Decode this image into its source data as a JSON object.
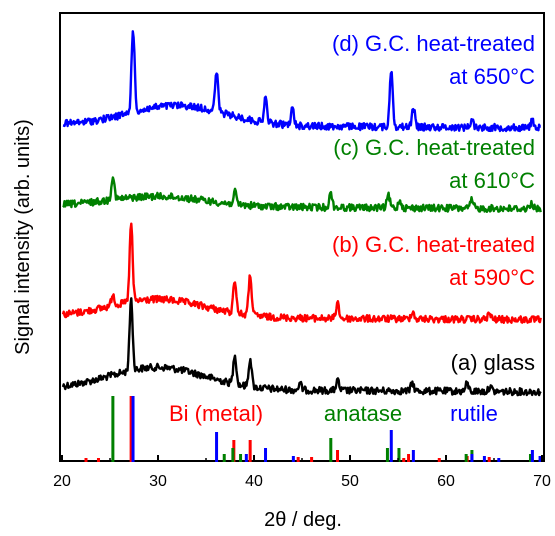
{
  "chart_data": {
    "type": "line",
    "xlabel": "2θ / deg.",
    "ylabel": "Signal intensity (arb. units)",
    "xlim": [
      20,
      70
    ],
    "xticks": [
      20,
      30,
      40,
      50,
      60,
      70
    ],
    "grid": false,
    "legend": "none",
    "series": [
      {
        "name": "(a) glass",
        "color": "#000000",
        "baseline": 390,
        "label_lines": [
          "(a) glass"
        ],
        "peaks": [
          [
            27.2,
            72
          ],
          [
            38.0,
            30
          ],
          [
            39.6,
            28
          ],
          [
            44.8,
            6
          ],
          [
            48.7,
            10
          ],
          [
            56.5,
            8
          ],
          [
            62.2,
            8
          ],
          [
            64.6,
            5
          ]
        ],
        "hump": [
          30,
          22
        ]
      },
      {
        "name": "(b) G.C. heat-treated at 590°C",
        "color": "#ff0000",
        "baseline": 318,
        "label_lines": [
          "(b) G.C. heat-treated",
          "at 590°C"
        ],
        "peaks": [
          [
            25.3,
            12
          ],
          [
            27.2,
            78
          ],
          [
            38.0,
            34
          ],
          [
            39.6,
            40
          ],
          [
            48.7,
            16
          ],
          [
            56.5,
            8
          ],
          [
            64.5,
            6
          ]
        ],
        "hump": [
          30,
          18
        ]
      },
      {
        "name": "(c) G.C. heat-treated at 610°C",
        "color": "#008000",
        "baseline": 207,
        "label_lines": [
          "(c) G.C. heat-treated",
          "at 610°C"
        ],
        "peaks": [
          [
            25.3,
            24
          ],
          [
            38.0,
            12
          ],
          [
            48.0,
            14
          ],
          [
            54.0,
            12
          ],
          [
            55.2,
            8
          ],
          [
            62.7,
            8
          ],
          [
            68.9,
            6
          ]
        ],
        "hump": [
          30,
          10
        ]
      },
      {
        "name": "(d) G.C. heat-treated at 650°C",
        "color": "#0000ff",
        "baseline": 126,
        "label_lines": [
          "(d) G.C. heat-treated",
          "at 650°C"
        ],
        "peaks": [
          [
            27.4,
            84
          ],
          [
            36.1,
            40
          ],
          [
            41.2,
            24
          ],
          [
            44.0,
            16
          ],
          [
            54.3,
            58
          ],
          [
            56.6,
            20
          ],
          [
            62.7,
            8
          ],
          [
            69.0,
            8
          ]
        ],
        "hump": [
          32,
          20
        ]
      }
    ],
    "reference_patterns": [
      {
        "name": "Bi (metal)",
        "color": "#ff0000",
        "lines": [
          [
            22.5,
            4
          ],
          [
            23.8,
            4
          ],
          [
            27.2,
            66
          ],
          [
            37.9,
            22
          ],
          [
            39.6,
            22
          ],
          [
            44.6,
            5
          ],
          [
            46.0,
            5
          ],
          [
            48.7,
            12
          ],
          [
            55.6,
            4
          ],
          [
            56.1,
            8
          ],
          [
            59.3,
            4
          ],
          [
            62.2,
            6
          ],
          [
            64.5,
            5
          ]
        ]
      },
      {
        "name": "anatase",
        "color": "#008000",
        "lines": [
          [
            25.3,
            66
          ],
          [
            36.9,
            8
          ],
          [
            37.8,
            14
          ],
          [
            38.6,
            8
          ],
          [
            48.0,
            24
          ],
          [
            53.9,
            14
          ],
          [
            55.1,
            14
          ],
          [
            62.1,
            8
          ],
          [
            62.7,
            12
          ],
          [
            68.8,
            8
          ]
        ]
      },
      {
        "name": "rutile",
        "color": "#0000ff",
        "lines": [
          [
            27.4,
            66
          ],
          [
            36.1,
            30
          ],
          [
            39.2,
            8
          ],
          [
            41.2,
            14
          ],
          [
            44.1,
            6
          ],
          [
            54.3,
            32
          ],
          [
            56.6,
            12
          ],
          [
            62.7,
            8
          ],
          [
            64.0,
            6
          ],
          [
            65.5,
            4
          ],
          [
            69.0,
            12
          ],
          [
            69.8,
            6
          ]
        ]
      }
    ]
  }
}
